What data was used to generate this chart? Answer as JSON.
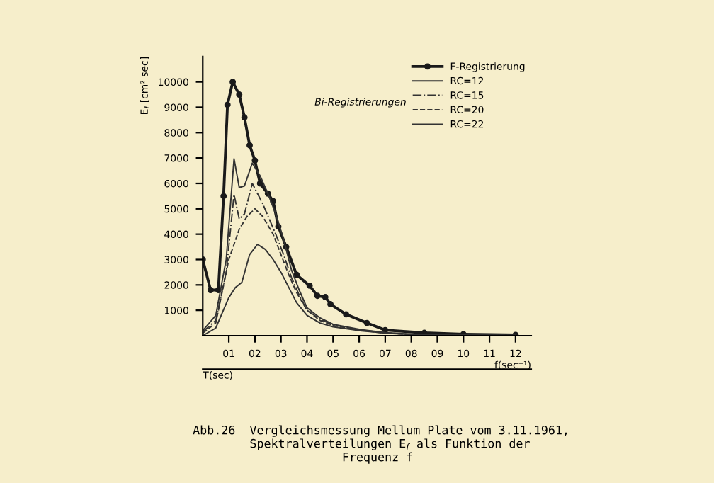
{
  "chart_data": {
    "type": "line",
    "xlabel": "f(sec⁻¹)",
    "ylabel": "E$_{f}$ [cm² sec]",
    "x2label": "T(sec)",
    "annotations": [
      "Bi-Registrierungen",
      "Abb.26  Vergleichsmessung Mellum Plate vom 3.11.1961,\n        Spektralverteilungen E$_{f}$ als Funktion der\n                     Frequenz f"
    ],
    "xlim": [
      0,
      12.6
    ],
    "ylim": [
      0,
      11000
    ],
    "xticks": [
      {
        "value": 1,
        "label": "01"
      },
      {
        "value": 2,
        "label": "02"
      },
      {
        "value": 3,
        "label": "03"
      },
      {
        "value": 4,
        "label": "04"
      },
      {
        "value": 5,
        "label": "05"
      },
      {
        "value": 6,
        "label": "06"
      },
      {
        "value": 7,
        "label": "07"
      },
      {
        "value": 8,
        "label": "08"
      },
      {
        "value": 9,
        "label": "09"
      },
      10,
      11,
      12
    ],
    "yticks": [
      1000,
      2000,
      3000,
      4000,
      5000,
      6000,
      7000,
      8000,
      9000,
      10000
    ],
    "grid": false,
    "legend": "top right",
    "series": [
      {
        "name": "F-Registrierung",
        "color": "#1a1a1a",
        "marker": "circle",
        "line_style": "solid",
        "x": [
          0,
          0.3,
          0.6,
          0.8,
          0.95,
          1.15,
          1.4,
          1.6,
          1.8,
          2.0,
          2.2,
          2.5,
          2.7,
          2.9,
          3.2,
          3.6,
          4.1,
          4.4,
          4.7,
          4.9,
          5.5,
          6.3,
          7.0,
          8.5,
          10,
          12
        ],
        "values": [
          3000,
          1800,
          1800,
          5500,
          9100,
          10000,
          9500,
          8600,
          7500,
          6900,
          6000,
          5600,
          5300,
          4300,
          3500,
          2400,
          1970,
          1570,
          1520,
          1240,
          840,
          500,
          220,
          110,
          60,
          30
        ]
      },
      {
        "name": "RC=12",
        "color": "#333333",
        "marker": "none",
        "line_style": "solid",
        "x": [
          0,
          0.5,
          0.9,
          1.2,
          1.4,
          1.6,
          1.9,
          2.2,
          2.5,
          2.8,
          3.1,
          3.4,
          3.7,
          4.0,
          4.5,
          5.0,
          6.0,
          7.0,
          8.0,
          10,
          12
        ],
        "values": [
          200,
          800,
          3000,
          6970,
          5840,
          5900,
          6800,
          6300,
          5600,
          4800,
          3800,
          2600,
          1800,
          1100,
          700,
          450,
          250,
          120,
          60,
          20,
          10
        ]
      },
      {
        "name": "RC=15",
        "color": "#333333",
        "marker": "none",
        "line_style": "dashdot",
        "x": [
          0,
          0.5,
          0.9,
          1.2,
          1.4,
          1.6,
          1.9,
          2.3,
          2.8,
          3.1,
          3.4,
          3.7,
          4.0,
          4.5,
          5.0,
          6.0,
          7.0,
          8.0,
          10,
          12
        ],
        "values": [
          150,
          600,
          2500,
          5560,
          4600,
          4800,
          6000,
          5200,
          4000,
          3200,
          2300,
          1600,
          1000,
          650,
          420,
          230,
          110,
          50,
          20,
          10
        ]
      },
      {
        "name": "RC=20",
        "color": "#333333",
        "marker": "none",
        "line_style": "dashed",
        "x": [
          0,
          0.5,
          1.0,
          1.4,
          1.7,
          2.0,
          2.3,
          2.7,
          3.0,
          3.3,
          3.6,
          4.0,
          4.5,
          5.0,
          6.0,
          7.0,
          8.0,
          10,
          12
        ],
        "values": [
          100,
          500,
          3000,
          4200,
          4700,
          5000,
          4700,
          4000,
          3200,
          2400,
          1700,
          1000,
          600,
          400,
          220,
          100,
          50,
          20,
          10
        ]
      },
      {
        "name": "RC=22",
        "color": "#333333",
        "marker": "none",
        "line_style": "solid",
        "x": [
          0,
          0.5,
          1.0,
          1.25,
          1.5,
          1.8,
          2.1,
          2.4,
          2.7,
          3.0,
          3.3,
          3.6,
          4.0,
          4.5,
          5.0,
          6.0,
          7.0,
          8.0,
          10,
          12
        ],
        "values": [
          0,
          300,
          1500,
          1900,
          2100,
          3200,
          3600,
          3400,
          3000,
          2500,
          1900,
          1300,
          800,
          500,
          350,
          200,
          100,
          50,
          20,
          10
        ]
      }
    ]
  }
}
